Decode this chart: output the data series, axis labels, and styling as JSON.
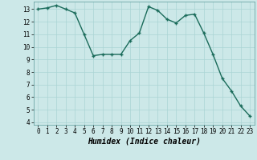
{
  "x": [
    0,
    1,
    2,
    3,
    4,
    5,
    6,
    7,
    8,
    9,
    10,
    11,
    12,
    13,
    14,
    15,
    16,
    17,
    18,
    19,
    20,
    21,
    22,
    23
  ],
  "y": [
    13.0,
    13.1,
    13.3,
    13.0,
    12.7,
    11.0,
    9.3,
    9.4,
    9.4,
    9.4,
    10.5,
    11.1,
    13.2,
    12.9,
    12.2,
    11.9,
    12.5,
    12.6,
    11.1,
    9.4,
    7.5,
    6.5,
    5.3,
    4.5
  ],
  "line_color": "#1a6b5a",
  "marker": "+",
  "marker_size": 4,
  "bg_color": "#cce8e8",
  "grid_color": "#aad4d4",
  "xlabel": "Humidex (Indice chaleur)",
  "ylim": [
    3.8,
    13.6
  ],
  "xlim": [
    -0.5,
    23.5
  ],
  "yticks": [
    4,
    5,
    6,
    7,
    8,
    9,
    10,
    11,
    12,
    13
  ],
  "xticks": [
    0,
    1,
    2,
    3,
    4,
    5,
    6,
    7,
    8,
    9,
    10,
    11,
    12,
    13,
    14,
    15,
    16,
    17,
    18,
    19,
    20,
    21,
    22,
    23
  ],
  "tick_fontsize": 5.5,
  "xlabel_fontsize": 7,
  "line_width": 1.0,
  "marker_size_pt": 3.5
}
